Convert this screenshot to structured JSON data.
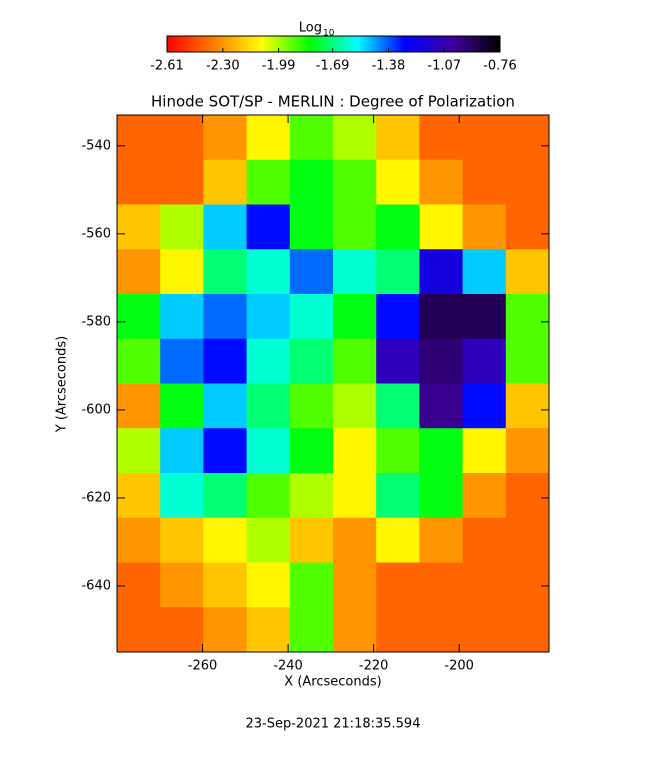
{
  "chart_data": {
    "type": "heatmap",
    "title": "Hinode SOT/SP - MERLIN : Degree of Polarization",
    "x_label": "X (Arcseconds)",
    "y_label": "Y (Arcseconds)",
    "footer": "23-Sep-2021 21:18:35.594",
    "colorbar_label": "Log",
    "colorbar_label_sub": "10",
    "clim": [
      -2.61,
      -0.76
    ],
    "cticks": [
      -2.61,
      {
        "value": -2.3,
        "label": "-2.30"
      },
      -1.99,
      -1.69,
      -1.38,
      -1.07,
      -0.76
    ],
    "colormap": [
      "#ff0000",
      "#ff8000",
      "#ffff00",
      "#00ff00",
      "#00ffff",
      "#0000ff",
      "#4000a0",
      "#000000"
    ],
    "xlim": [
      -280,
      -179
    ],
    "ylim": [
      -533,
      -655
    ],
    "xticks": [
      -260,
      -240,
      -220,
      -200
    ],
    "yticks": [
      -540,
      -560,
      -580,
      -600,
      -620,
      -640
    ],
    "z": [
      [
        -2.4,
        -2.4,
        -2.3,
        -2.1,
        -1.9,
        -2.0,
        -2.2,
        -2.4,
        -2.4,
        -2.4
      ],
      [
        -2.4,
        -2.4,
        -2.2,
        -1.9,
        -1.8,
        -1.9,
        -2.1,
        -2.3,
        -2.4,
        -2.4
      ],
      [
        -2.2,
        -2.0,
        -1.5,
        -1.3,
        -1.8,
        -1.9,
        -1.8,
        -2.1,
        -2.3,
        -2.4
      ],
      [
        -2.3,
        -2.1,
        -1.7,
        -1.6,
        -1.4,
        -1.6,
        -1.7,
        -1.2,
        -1.5,
        -2.2
      ],
      [
        -1.8,
        -1.5,
        -1.4,
        -1.5,
        -1.6,
        -1.8,
        -1.3,
        -0.9,
        -0.9,
        -1.9
      ],
      [
        -1.9,
        -1.4,
        -1.3,
        -1.6,
        -1.7,
        -1.9,
        -1.1,
        -0.95,
        -1.1,
        -1.9
      ],
      [
        -2.3,
        -1.8,
        -1.5,
        -1.7,
        -1.9,
        -2.0,
        -1.7,
        -1.0,
        -1.3,
        -2.2
      ],
      [
        -2.0,
        -1.5,
        -1.3,
        -1.6,
        -1.8,
        -2.1,
        -1.9,
        -1.8,
        -2.1,
        -2.3
      ],
      [
        -2.2,
        -1.6,
        -1.7,
        -1.9,
        -2.0,
        -2.1,
        -1.7,
        -1.8,
        -2.3,
        -2.4
      ],
      [
        -2.3,
        -2.2,
        -2.1,
        -2.0,
        -2.2,
        -2.3,
        -2.1,
        -2.3,
        -2.4,
        -2.4
      ],
      [
        -2.4,
        -2.3,
        -2.2,
        -2.1,
        -1.9,
        -2.3,
        -2.4,
        -2.4,
        -2.4,
        -2.4
      ],
      [
        -2.4,
        -2.4,
        -2.3,
        -2.2,
        -1.9,
        -2.3,
        -2.4,
        -2.4,
        -2.4,
        -2.4
      ]
    ]
  }
}
